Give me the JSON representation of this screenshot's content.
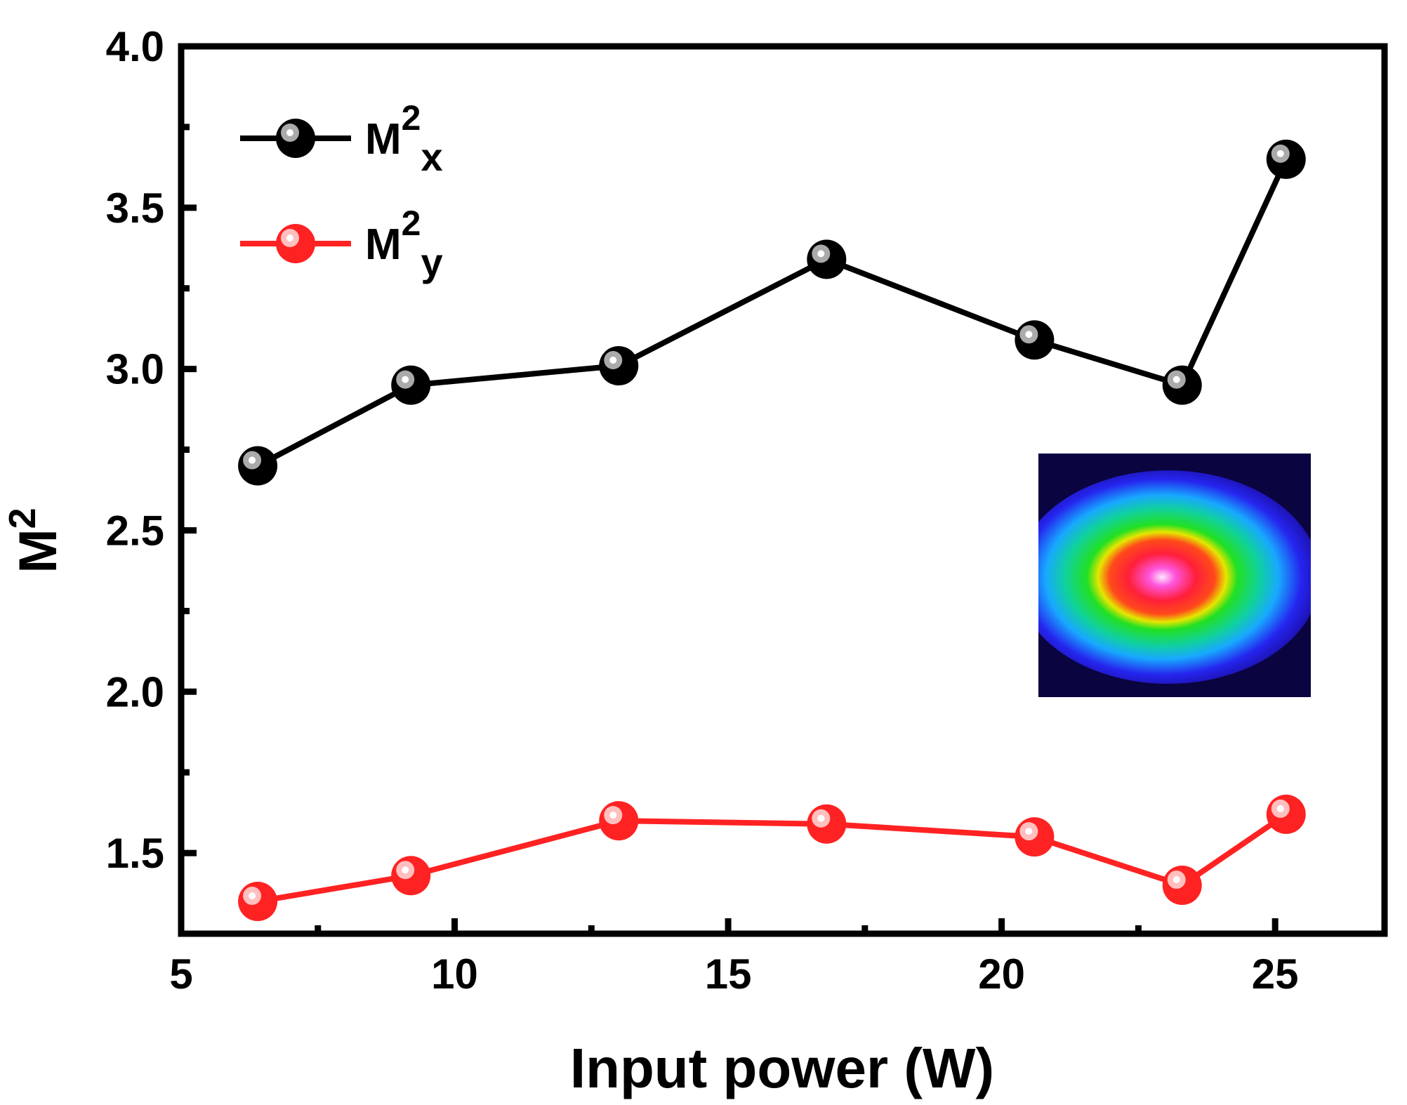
{
  "chart_data": {
    "type": "line",
    "title": "",
    "xlabel": "Input power (W)",
    "ylabel": "M2",
    "ylabel_base": "M",
    "ylabel_sup": "2",
    "xlim": [
      5,
      27
    ],
    "ylim": [
      1.25,
      4.0
    ],
    "x_ticks": [
      5,
      10,
      15,
      20,
      25
    ],
    "x_tick_labels": [
      "5",
      "10",
      "15",
      "20",
      "25"
    ],
    "x_minor_ticks": [
      7.5,
      12.5,
      17.5,
      22.5
    ],
    "y_ticks": [
      1.5,
      2.0,
      2.5,
      3.0,
      3.5,
      4.0
    ],
    "y_tick_labels": [
      "1.5",
      "2.0",
      "2.5",
      "3.0",
      "3.5",
      "4.0"
    ],
    "y_minor_ticks": [
      1.75,
      2.25,
      2.75,
      3.25,
      3.75
    ],
    "grid": false,
    "legend_position": "top-left",
    "x": [
      6.4,
      9.2,
      13.0,
      16.8,
      20.6,
      23.3,
      25.2
    ],
    "series": [
      {
        "name": "M2x",
        "label_base": "M",
        "label_sup": "2",
        "label_sub": "x",
        "color": "#000000",
        "highlight": "#bdbdbd",
        "values": [
          2.7,
          2.95,
          3.01,
          3.34,
          3.09,
          2.95,
          3.65
        ]
      },
      {
        "name": "M2y",
        "label_base": "M",
        "label_sup": "2",
        "label_sub": "y",
        "color": "#ff2222",
        "highlight": "#ffd0d0",
        "values": [
          1.35,
          1.43,
          1.6,
          1.59,
          1.55,
          1.4,
          1.62
        ]
      }
    ],
    "inset": "beam-profile image"
  }
}
